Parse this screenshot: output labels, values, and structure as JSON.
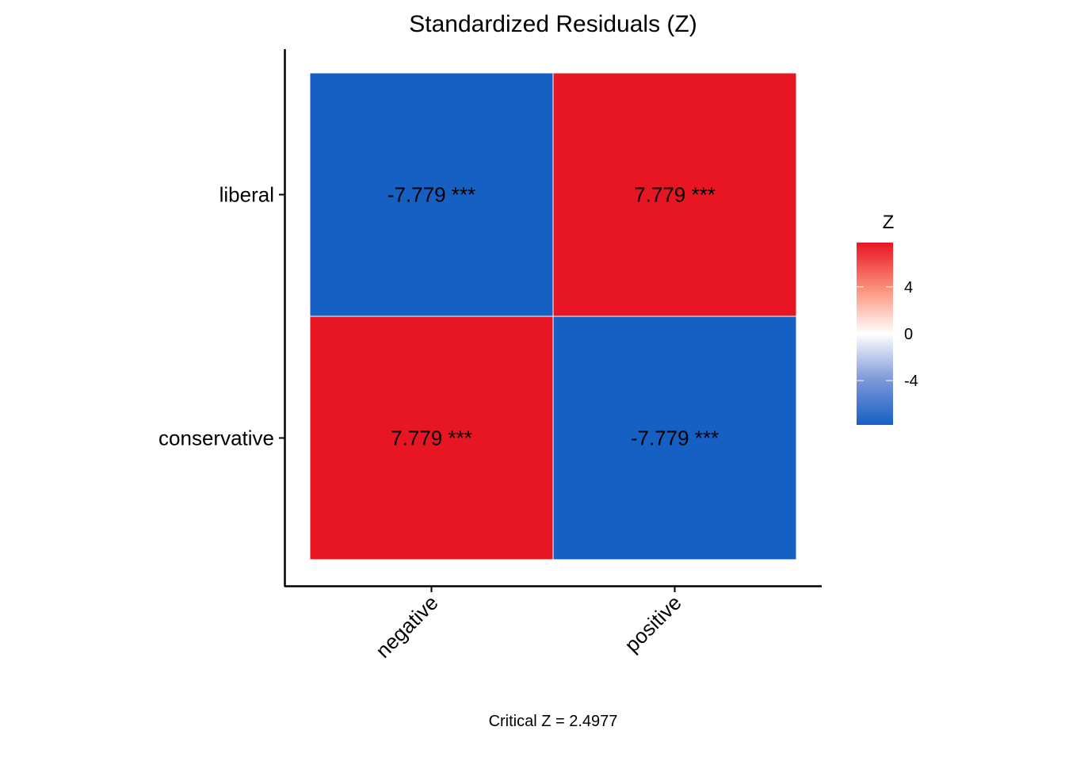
{
  "chart_data": {
    "type": "heatmap",
    "title": "Standardized Residuals (Z)",
    "caption": "Critical Z = 2.4977",
    "x_categories": [
      "negative",
      "positive"
    ],
    "y_categories": [
      "liberal",
      "conservative"
    ],
    "cells": [
      {
        "x": "negative",
        "y": "liberal",
        "value": -7.779,
        "label": "-7.779 ***"
      },
      {
        "x": "positive",
        "y": "liberal",
        "value": 7.779,
        "label": "7.779 ***"
      },
      {
        "x": "negative",
        "y": "conservative",
        "value": 7.779,
        "label": "7.779 ***"
      },
      {
        "x": "positive",
        "y": "conservative",
        "value": -7.779,
        "label": "-7.779 ***"
      }
    ],
    "legend": {
      "title": "Z",
      "ticks": [
        4,
        0,
        -4
      ],
      "tick_labels": [
        "4",
        "0",
        "-4"
      ],
      "range": [
        -7.779,
        7.779
      ],
      "position": "right"
    },
    "colors": {
      "low": "#1660C4",
      "mid": "#FFFFFF",
      "high": "#E81523"
    }
  }
}
